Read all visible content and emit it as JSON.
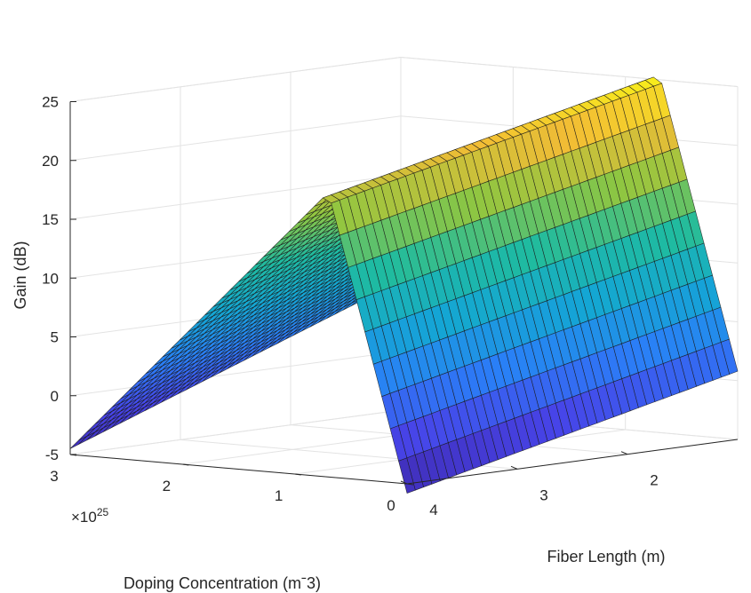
{
  "chart_data": {
    "type": "surface",
    "title": "",
    "xlabel": "Fiber Length (m)",
    "ylabel": "Doping Concentration (mˉ3)",
    "zlabel": "Gain (dB)",
    "y_exponent": "×10",
    "y_exponent_power": "25",
    "x_range": [
      1,
      4
    ],
    "y_range": [
      0,
      3e+25
    ],
    "z_range": [
      -5,
      25
    ],
    "x_ticks": [
      "2",
      "3",
      "4"
    ],
    "y_ticks": [
      "0",
      "1",
      "2",
      "3"
    ],
    "z_ticks": [
      "-5",
      "0",
      "5",
      "10",
      "15",
      "20",
      "25"
    ],
    "x_tick_values": [
      2,
      3,
      4
    ],
    "y_tick_values": [
      0,
      1,
      2,
      3
    ],
    "z_tick_values": [
      -5,
      0,
      5,
      10,
      15,
      20,
      25
    ],
    "grid": true,
    "colormap": "parula",
    "colormap_stops": [
      "#3e26a8",
      "#4744e8",
      "#2a7ff7",
      "#14a6d4",
      "#1fbba0",
      "#8fc641",
      "#f2bc35",
      "#f9fb15"
    ],
    "surface_points": [
      {
        "x": 1.0,
        "y": 0,
        "z": 0.8
      },
      {
        "x": 1.0,
        "y": 7e+24,
        "z": 25.6
      },
      {
        "x": 1.0,
        "y": 3e+25,
        "z": 6.0
      },
      {
        "x": 4.0,
        "y": 0,
        "z": -5.8
      },
      {
        "x": 4.0,
        "y": 7e+24,
        "z": 19.2
      },
      {
        "x": 4.0,
        "y": 3e+25,
        "z": -4.5
      }
    ],
    "grid_counts": {
      "x": 40,
      "y": 40
    }
  }
}
